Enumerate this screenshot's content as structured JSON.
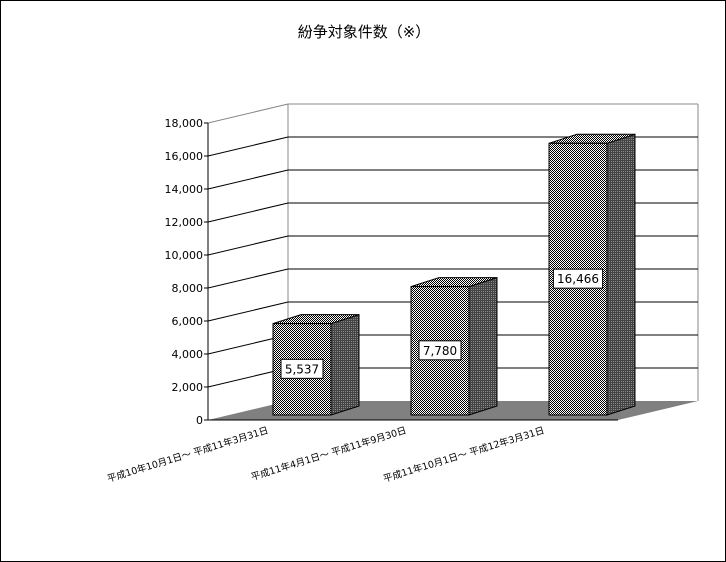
{
  "chart_data": {
    "type": "bar",
    "style": "3d",
    "title": "紛争対象件数（※）",
    "categories": [
      "平成10年10月1日～ 平成11年3月31日",
      "平成11年4月1日～ 平成11年9月30日",
      "平成11年10月1日～ 平成12年3月31日"
    ],
    "values": [
      5537,
      7780,
      16466
    ],
    "data_labels": [
      "5,537",
      "7,780",
      "16,466"
    ],
    "yticks": [
      "0",
      "2,000",
      "4,000",
      "6,000",
      "8,000",
      "10,000",
      "12,000",
      "14,000",
      "16,000",
      "18,000"
    ],
    "ylim": [
      0,
      18000
    ],
    "grid": true,
    "legend": "none",
    "colors": {
      "bar_front": "#b0b0b0",
      "bar_side": "#505050",
      "floor": "#808080"
    }
  }
}
